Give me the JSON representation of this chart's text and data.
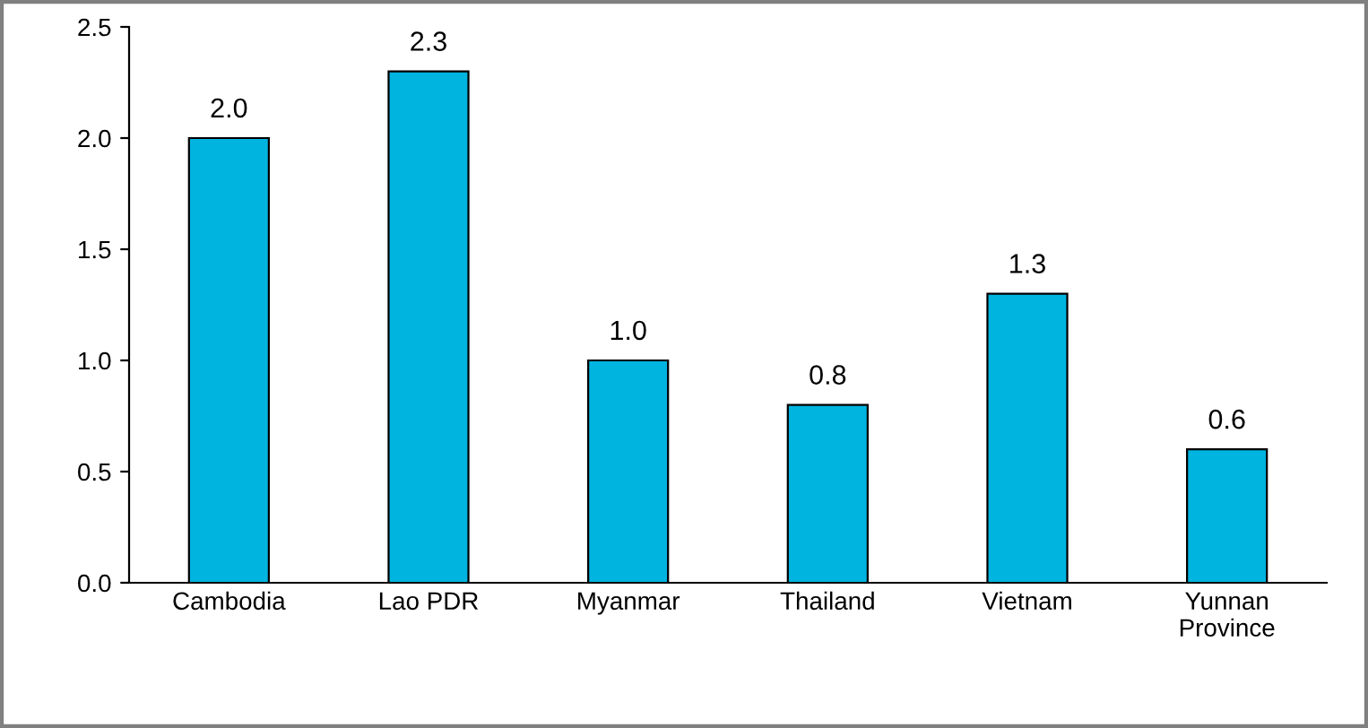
{
  "chart_data": {
    "type": "bar",
    "categories": [
      "Cambodia",
      "Lao PDR",
      "Myanmar",
      "Thailand",
      "Vietnam",
      "Yunnan\nProvince"
    ],
    "values": [
      2.0,
      2.3,
      1.0,
      0.8,
      1.3,
      0.6
    ],
    "value_labels": [
      "2.0",
      "2.3",
      "1.0",
      "0.8",
      "1.3",
      "0.6"
    ],
    "color": "#00b4e0",
    "ylim": [
      0,
      2.5
    ],
    "yticks": [
      {
        "value": 0,
        "label": "0.0"
      },
      {
        "value": 0.5,
        "label": "0.5"
      },
      {
        "value": 1,
        "label": "1.0"
      },
      {
        "value": 1.5,
        "label": "1.5"
      },
      {
        "value": 2,
        "label": "2.0"
      },
      {
        "value": 2.5,
        "label": "2.5"
      }
    ],
    "grid": false,
    "legend": false
  }
}
